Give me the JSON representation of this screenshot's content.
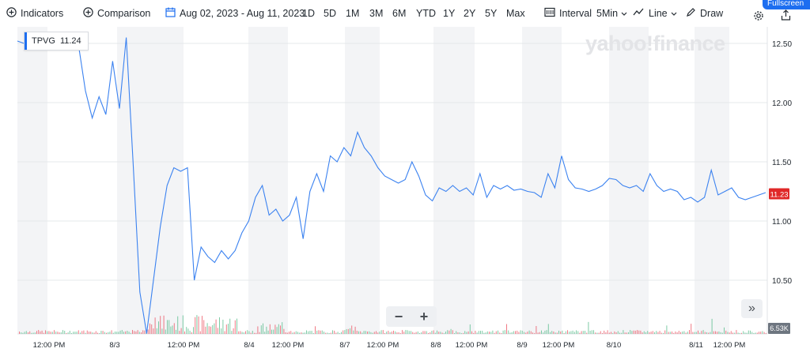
{
  "toolbar": {
    "indicators_label": "Indicators",
    "comparison_label": "Comparison",
    "date_range_label": "Aug 02, 2023 - Aug 11, 2023",
    "ranges": [
      "1D",
      "5D",
      "1M",
      "3M",
      "6M",
      "YTD",
      "1Y",
      "2Y",
      "5Y",
      "Max"
    ],
    "interval_label": "Interval",
    "interval_value": "5Min",
    "chart_type_label": "Line",
    "draw_label": "Draw",
    "fullscreen_label": "Fullscreen"
  },
  "watermark": "yahoo!finance",
  "symbol": {
    "ticker": "TPVG",
    "price": "11.24"
  },
  "last_price_tag": "11.23",
  "volume_tag": "6.53K",
  "zoom": {
    "minus": "−",
    "plus": "+"
  },
  "scroll_right_icon": "double-chevron-right-icon",
  "colors": {
    "line": "#3b82f0",
    "price_tag": "#e02828",
    "volume_up": "#53b987",
    "volume_down": "#eb4d5c",
    "shade": "#f3f4f6"
  },
  "chart_data": {
    "type": "line",
    "title": "",
    "series": [
      {
        "name": "TPVG"
      }
    ],
    "ylim": [
      10.0,
      12.65
    ],
    "yticks": [
      "12.50",
      "12.00",
      "11.50",
      "11.00",
      "10.50"
    ],
    "xticks": [
      "12:00 PM",
      "8/3",
      "12:00 PM",
      "8/4",
      "12:00 PM",
      "8/7",
      "12:00 PM",
      "8/8",
      "12:00 PM",
      "8/9",
      "12:00 PM",
      "8/10",
      "8/11",
      "12:00 PM"
    ],
    "grid": true,
    "points": [
      [
        0,
        12.52
      ],
      [
        1,
        12.5
      ],
      [
        2,
        12.53
      ],
      [
        3,
        12.48
      ],
      [
        4,
        12.45
      ],
      [
        5,
        12.5
      ],
      [
        6,
        12.52
      ],
      [
        7,
        12.5
      ],
      [
        8,
        12.53
      ],
      [
        9,
        12.48
      ],
      [
        10,
        12.1
      ],
      [
        11,
        11.87
      ],
      [
        12,
        12.05
      ],
      [
        13,
        11.9
      ],
      [
        14,
        12.35
      ],
      [
        15,
        11.95
      ],
      [
        16,
        12.55
      ],
      [
        17,
        11.5
      ],
      [
        18,
        10.4
      ],
      [
        19,
        10.05
      ],
      [
        20,
        10.5
      ],
      [
        21,
        10.95
      ],
      [
        22,
        11.3
      ],
      [
        23,
        11.45
      ],
      [
        24,
        11.42
      ],
      [
        25,
        11.45
      ],
      [
        26,
        10.5
      ],
      [
        27,
        10.78
      ],
      [
        28,
        10.7
      ],
      [
        29,
        10.65
      ],
      [
        30,
        10.75
      ],
      [
        31,
        10.68
      ],
      [
        32,
        10.75
      ],
      [
        33,
        10.9
      ],
      [
        34,
        11.0
      ],
      [
        35,
        11.2
      ],
      [
        36,
        11.3
      ],
      [
        37,
        11.05
      ],
      [
        38,
        11.1
      ],
      [
        39,
        11.0
      ],
      [
        40,
        11.05
      ],
      [
        41,
        11.2
      ],
      [
        42,
        10.85
      ],
      [
        43,
        11.25
      ],
      [
        44,
        11.4
      ],
      [
        45,
        11.25
      ],
      [
        46,
        11.55
      ],
      [
        47,
        11.5
      ],
      [
        48,
        11.62
      ],
      [
        49,
        11.55
      ],
      [
        50,
        11.75
      ],
      [
        51,
        11.62
      ],
      [
        52,
        11.55
      ],
      [
        53,
        11.45
      ],
      [
        54,
        11.38
      ],
      [
        55,
        11.35
      ],
      [
        56,
        11.32
      ],
      [
        57,
        11.35
      ],
      [
        58,
        11.5
      ],
      [
        59,
        11.38
      ],
      [
        60,
        11.22
      ],
      [
        61,
        11.17
      ],
      [
        62,
        11.28
      ],
      [
        63,
        11.25
      ],
      [
        64,
        11.3
      ],
      [
        65,
        11.25
      ],
      [
        66,
        11.28
      ],
      [
        67,
        11.22
      ],
      [
        68,
        11.4
      ],
      [
        69,
        11.2
      ],
      [
        70,
        11.3
      ],
      [
        71,
        11.27
      ],
      [
        72,
        11.3
      ],
      [
        73,
        11.26
      ],
      [
        74,
        11.27
      ],
      [
        75,
        11.25
      ],
      [
        76,
        11.24
      ],
      [
        77,
        11.2
      ],
      [
        78,
        11.4
      ],
      [
        79,
        11.28
      ],
      [
        80,
        11.55
      ],
      [
        81,
        11.35
      ],
      [
        82,
        11.28
      ],
      [
        83,
        11.27
      ],
      [
        84,
        11.25
      ],
      [
        85,
        11.27
      ],
      [
        86,
        11.3
      ],
      [
        87,
        11.36
      ],
      [
        88,
        11.35
      ],
      [
        89,
        11.3
      ],
      [
        90,
        11.28
      ],
      [
        91,
        11.3
      ],
      [
        92,
        11.25
      ],
      [
        93,
        11.4
      ],
      [
        94,
        11.3
      ],
      [
        95,
        11.25
      ],
      [
        96,
        11.27
      ],
      [
        97,
        11.25
      ],
      [
        98,
        11.18
      ],
      [
        99,
        11.2
      ],
      [
        100,
        11.16
      ],
      [
        101,
        11.2
      ],
      [
        102,
        11.43
      ],
      [
        103,
        11.22
      ],
      [
        104,
        11.25
      ],
      [
        105,
        11.28
      ],
      [
        106,
        11.2
      ],
      [
        107,
        11.18
      ],
      [
        108,
        11.2
      ],
      [
        109,
        11.22
      ],
      [
        110,
        11.24
      ]
    ]
  }
}
